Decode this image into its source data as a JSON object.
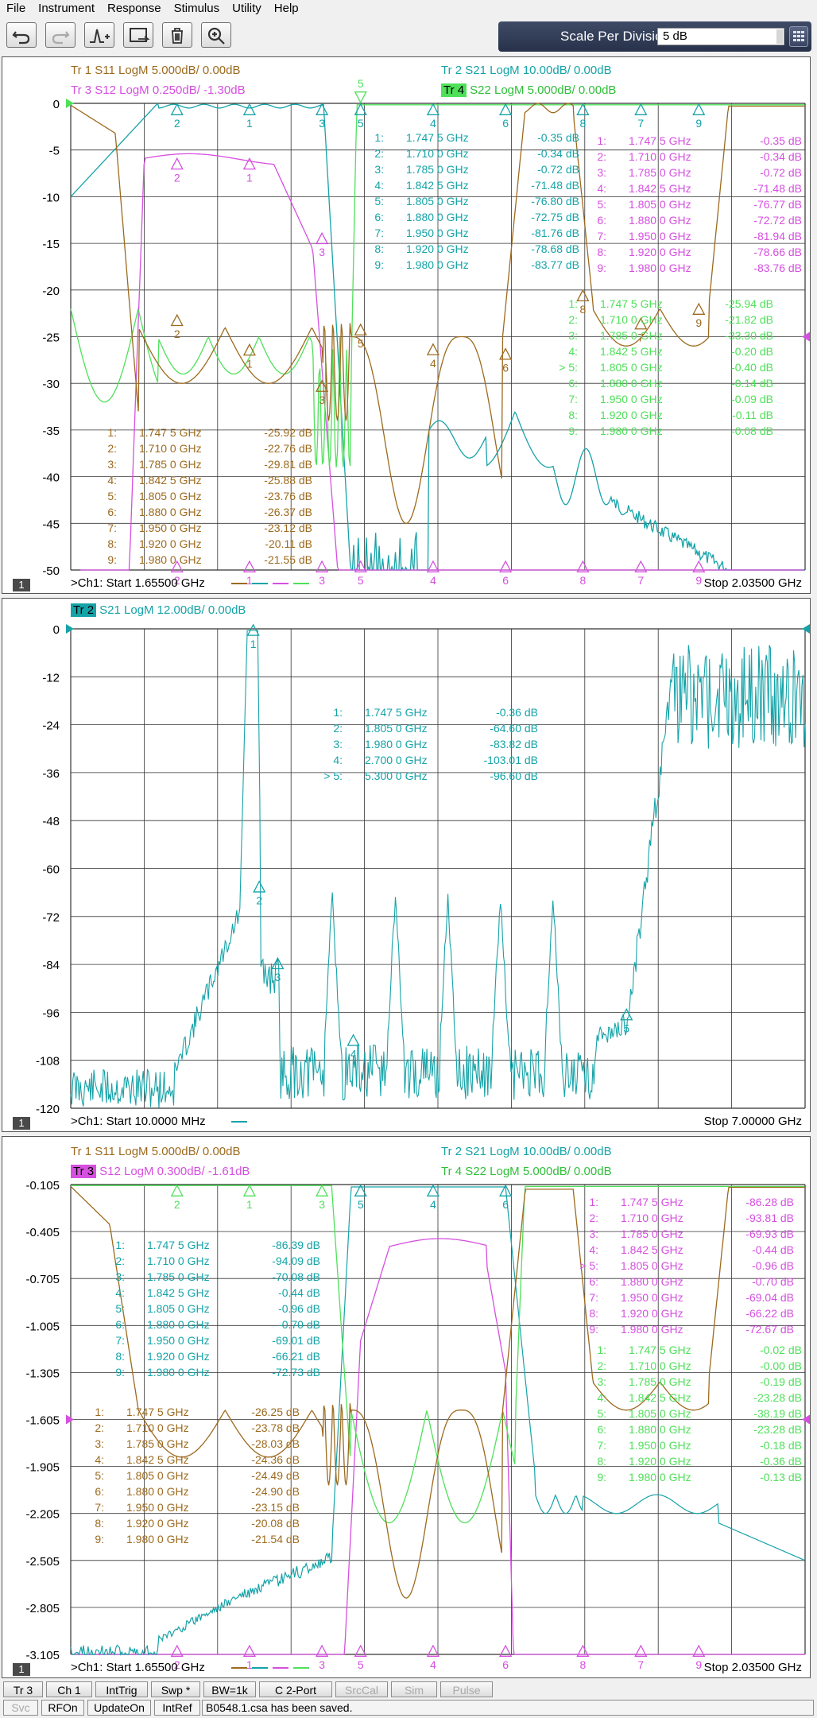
{
  "menu": [
    "File",
    "Instrument",
    "Response",
    "Stimulus",
    "Utility",
    "Help"
  ],
  "toolbar": {
    "icons": [
      "undo-icon",
      "redo-icon",
      "marker-add-icon",
      "cal-all-icon",
      "trash-icon",
      "zoom-icon"
    ],
    "scale_label": "Scale Per Division",
    "scale_value": "5 dB"
  },
  "colors": {
    "tr1": "#9c6a1e",
    "tr2": "#15a3a8",
    "tr3": "#d64fe0",
    "tr4": "#4fe05a",
    "grid": "#222222"
  },
  "windows": [
    {
      "ch_num": "1",
      "headers": [
        {
          "text": "Tr 1  S11 LogM 5.000dB/  0.00dB",
          "color": "#9c6a1e",
          "tag": ""
        },
        {
          "text": "Tr 2  S21 LogM 10.00dB/  0.00dB",
          "color": "#15a3a8",
          "tag": ""
        },
        {
          "text": "Tr 3  S12 LogM 0.250dB/  -1.30dB",
          "color": "#d64fe0",
          "tag": ""
        },
        {
          "text": "S22 LogM 5.000dB/  0.00dB",
          "color": "#2fbf38",
          "tag": "Tr 4"
        }
      ],
      "yticks": [
        "0",
        "-5",
        "-10",
        "-15",
        "-20",
        "-25",
        "-30",
        "-35",
        "-40",
        "-45",
        "-50"
      ],
      "start": ">Ch1:  Start   1.65500 GHz",
      "stop": "Stop  2.03500 GHz",
      "tables": [
        {
          "color": "#15a3a8",
          "rows": [
            [
              "1:",
              "1.747 5 GHz",
              "-0.35 dB"
            ],
            [
              "2:",
              "1.710 0 GHz",
              "-0.34 dB"
            ],
            [
              "3:",
              "1.785 0 GHz",
              "-0.72 dB"
            ],
            [
              "4:",
              "1.842 5 GHz",
              "-71.48 dB"
            ],
            [
              "5:",
              "1.805 0 GHz",
              "-76.80 dB"
            ],
            [
              "6:",
              "1.880 0 GHz",
              "-72.75 dB"
            ],
            [
              "7:",
              "1.950 0 GHz",
              "-81.76 dB"
            ],
            [
              "8:",
              "1.920 0 GHz",
              "-78.68 dB"
            ],
            [
              "9:",
              "1.980 0 GHz",
              "-83.77 dB"
            ]
          ]
        },
        {
          "color": "#d64fe0",
          "rows": [
            [
              "1:",
              "1.747 5 GHz",
              "-0.35 dB"
            ],
            [
              "2:",
              "1.710 0 GHz",
              "-0.34 dB"
            ],
            [
              "3:",
              "1.785 0 GHz",
              "-0.72 dB"
            ],
            [
              "4:",
              "1.842 5 GHz",
              "-71.48 dB"
            ],
            [
              "5:",
              "1.805 0 GHz",
              "-76.77 dB"
            ],
            [
              "6:",
              "1.880 0 GHz",
              "-72.72 dB"
            ],
            [
              "7:",
              "1.950 0 GHz",
              "-81.94 dB"
            ],
            [
              "8:",
              "1.920 0 GHz",
              "-78.66 dB"
            ],
            [
              "9:",
              "1.980 0 GHz",
              "-83.76 dB"
            ]
          ]
        },
        {
          "color": "#4fe05a",
          "rows": [
            [
              "1:",
              "1.747 5 GHz",
              "-25.94 dB"
            ],
            [
              "2:",
              "1.710 0 GHz",
              "-21.82 dB"
            ],
            [
              "3:",
              "1.785 0 GHz",
              "-33.30 dB"
            ],
            [
              "4:",
              "1.842 5 GHz",
              "-0.20 dB"
            ],
            [
              "> 5:",
              "1.805 0 GHz",
              "-0.40 dB"
            ],
            [
              "6:",
              "1.880 0 GHz",
              "-0.14 dB"
            ],
            [
              "7:",
              "1.950 0 GHz",
              "-0.09 dB"
            ],
            [
              "8:",
              "1.920 0 GHz",
              "-0.11 dB"
            ],
            [
              "9:",
              "1.980 0 GHz",
              "-0.08 dB"
            ]
          ]
        },
        {
          "color": "#9c6a1e",
          "rows": [
            [
              "1:",
              "1.747 5 GHz",
              "-25.92 dB"
            ],
            [
              "2:",
              "1.710 0 GHz",
              "-22.76 dB"
            ],
            [
              "3:",
              "1.785 0 GHz",
              "-29.81 dB"
            ],
            [
              "4:",
              "1.842 5 GHz",
              "-25.88 dB"
            ],
            [
              "5:",
              "1.805 0 GHz",
              "-23.76 dB"
            ],
            [
              "6:",
              "1.880 0 GHz",
              "-26.37 dB"
            ],
            [
              "7:",
              "1.950 0 GHz",
              "-23.12 dB"
            ],
            [
              "8:",
              "1.920 0 GHz",
              "-20.11 dB"
            ],
            [
              "9:",
              "1.980 0 GHz",
              "-21.55 dB"
            ]
          ]
        }
      ]
    },
    {
      "ch_num": "1",
      "headers": [
        {
          "text": "S21 LogM 12.00dB/  0.00dB",
          "color": "#15a3a8",
          "tag": "Tr 2"
        }
      ],
      "yticks": [
        "0",
        "-12",
        "-24",
        "-36",
        "-48",
        "-60",
        "-72",
        "-84",
        "-96",
        "-108",
        "-120"
      ],
      "start": ">Ch1:  Start   10.0000 MHz",
      "stop": "Stop  7.00000 GHz",
      "tables": [
        {
          "color": "#15a3a8",
          "rows": [
            [
              "1:",
              "1.747 5 GHz",
              "-0.36 dB"
            ],
            [
              "2:",
              "1.805 0 GHz",
              "-64.60 dB"
            ],
            [
              "3:",
              "1.980 0 GHz",
              "-83.82 dB"
            ],
            [
              "4:",
              "2.700 0 GHz",
              "-103.01 dB"
            ],
            [
              "> 5:",
              "5.300 0 GHz",
              "-96.60 dB"
            ]
          ]
        }
      ]
    },
    {
      "ch_num": "1",
      "headers": [
        {
          "text": "Tr 1  S11 LogM 5.000dB/  0.00dB",
          "color": "#9c6a1e",
          "tag": ""
        },
        {
          "text": "Tr 2  S21 LogM 10.00dB/  0.00dB",
          "color": "#15a3a8",
          "tag": ""
        },
        {
          "text": "S12 LogM 0.300dB/  -1.61dB",
          "color": "#d64fe0",
          "tag": "Tr 3"
        },
        {
          "text": "Tr 4  S22 LogM 5.000dB/  0.00dB",
          "color": "#2fbf38",
          "tag": ""
        }
      ],
      "yticks": [
        "-0.105",
        "-0.405",
        "-0.705",
        "-1.005",
        "-1.305",
        "-1.605",
        "-1.905",
        "-2.205",
        "-2.505",
        "-2.805",
        "-3.105"
      ],
      "start": ">Ch1:  Start   1.65500 GHz",
      "stop": "Stop  2.03500 GHz",
      "tables": [
        {
          "color": "#15a3a8",
          "rows": [
            [
              "1:",
              "1.747 5 GHz",
              "-86.39 dB"
            ],
            [
              "2:",
              "1.710 0 GHz",
              "-94.09 dB"
            ],
            [
              "3:",
              "1.785 0 GHz",
              "-70.08 dB"
            ],
            [
              "4:",
              "1.842 5 GHz",
              "-0.44 dB"
            ],
            [
              "5:",
              "1.805 0 GHz",
              "-0.96 dB"
            ],
            [
              "6:",
              "1.880 0 GHz",
              "-0.70 dB"
            ],
            [
              "7:",
              "1.950 0 GHz",
              "-69.01 dB"
            ],
            [
              "8:",
              "1.920 0 GHz",
              "-66.21 dB"
            ],
            [
              "9:",
              "1.980 0 GHz",
              "-72.73 dB"
            ]
          ]
        },
        {
          "color": "#d64fe0",
          "rows": [
            [
              "1:",
              "1.747 5 GHz",
              "-86.28 dB"
            ],
            [
              "2:",
              "1.710 0 GHz",
              "-93.81 dB"
            ],
            [
              "3:",
              "1.785 0 GHz",
              "-69.93 dB"
            ],
            [
              "4:",
              "1.842 5 GHz",
              "-0.44 dB"
            ],
            [
              "> 5:",
              "1.805 0 GHz",
              "-0.96 dB"
            ],
            [
              "6:",
              "1.880 0 GHz",
              "-0.70 dB"
            ],
            [
              "7:",
              "1.950 0 GHz",
              "-69.04 dB"
            ],
            [
              "8:",
              "1.920 0 GHz",
              "-66.22 dB"
            ],
            [
              "9:",
              "1.980 0 GHz",
              "-72.67 dB"
            ]
          ]
        },
        {
          "color": "#4fe05a",
          "rows": [
            [
              "1:",
              "1.747 5 GHz",
              "-0.02 dB"
            ],
            [
              "2:",
              "1.710 0 GHz",
              "-0.00 dB"
            ],
            [
              "3:",
              "1.785 0 GHz",
              "-0.19 dB"
            ],
            [
              "4:",
              "1.842 5 GHz",
              "-23.28 dB"
            ],
            [
              "5:",
              "1.805 0 GHz",
              "-38.19 dB"
            ],
            [
              "6:",
              "1.880 0 GHz",
              "-23.28 dB"
            ],
            [
              "7:",
              "1.950 0 GHz",
              "-0.18 dB"
            ],
            [
              "8:",
              "1.920 0 GHz",
              "-0.36 dB"
            ],
            [
              "9:",
              "1.980 0 GHz",
              "-0.13 dB"
            ]
          ]
        },
        {
          "color": "#9c6a1e",
          "rows": [
            [
              "1:",
              "1.747 5 GHz",
              "-26.25 dB"
            ],
            [
              "2:",
              "1.710 0 GHz",
              "-23.78 dB"
            ],
            [
              "3:",
              "1.785 0 GHz",
              "-28.03 dB"
            ],
            [
              "4:",
              "1.842 5 GHz",
              "-24.36 dB"
            ],
            [
              "5:",
              "1.805 0 GHz",
              "-24.49 dB"
            ],
            [
              "6:",
              "1.880 0 GHz",
              "-24.90 dB"
            ],
            [
              "7:",
              "1.950 0 GHz",
              "-23.15 dB"
            ],
            [
              "8:",
              "1.920 0 GHz",
              "-20.08 dB"
            ],
            [
              "9:",
              "1.980 0 GHz",
              "-21.54 dB"
            ]
          ]
        }
      ]
    }
  ],
  "status_row1": [
    "Tr 3",
    "Ch 1",
    "IntTrig",
    "Swp *",
    "BW=1k",
    "C  2-Port",
    "SrcCal",
    "Sim",
    "Pulse"
  ],
  "status_row2": [
    "Svc",
    "RFOn",
    "UpdateOn",
    "IntRef"
  ],
  "status_message": "B0548.1.csa has been saved.",
  "chart_data": [
    {
      "type": "line",
      "x_range_GHz": [
        1.655,
        2.035
      ],
      "ylim": [
        -50,
        0
      ],
      "y_unit": "dB",
      "series": [
        {
          "name": "S11",
          "markers_x_GHz": [
            1.7475,
            1.71,
            1.785,
            1.8425,
            1.805,
            1.88,
            1.95,
            1.92,
            1.98
          ],
          "markers_y_dB": [
            -25.92,
            -22.76,
            -29.81,
            -25.88,
            -23.76,
            -26.37,
            -23.12,
            -20.11,
            -21.55
          ]
        },
        {
          "name": "S21",
          "markers_x_GHz": [
            1.7475,
            1.71,
            1.785,
            1.8425,
            1.805,
            1.88,
            1.95,
            1.92,
            1.98
          ],
          "markers_y_dB": [
            -0.35,
            -0.34,
            -0.72,
            -71.48,
            -76.8,
            -72.75,
            -81.76,
            -78.68,
            -83.77
          ]
        },
        {
          "name": "S12",
          "markers_x_GHz": [
            1.7475,
            1.71,
            1.785,
            1.8425,
            1.805,
            1.88,
            1.95,
            1.92,
            1.98
          ],
          "markers_y_dB": [
            -0.35,
            -0.34,
            -0.72,
            -71.48,
            -76.77,
            -72.72,
            -81.94,
            -78.66,
            -83.76
          ]
        },
        {
          "name": "S22",
          "markers_x_GHz": [
            1.7475,
            1.71,
            1.785,
            1.8425,
            1.805,
            1.88,
            1.95,
            1.92,
            1.98
          ],
          "markers_y_dB": [
            -25.94,
            -21.82,
            -33.3,
            -0.2,
            -0.4,
            -0.14,
            -0.09,
            -0.11,
            -0.08
          ]
        }
      ]
    },
    {
      "type": "line",
      "x_range_GHz": [
        0.01,
        7.0
      ],
      "ylim": [
        -120,
        0
      ],
      "y_unit": "dB",
      "series": [
        {
          "name": "S21",
          "markers_x_GHz": [
            1.7475,
            1.805,
            1.98,
            2.7,
            5.3
          ],
          "markers_y_dB": [
            -0.36,
            -64.6,
            -83.82,
            -103.01,
            -96.6
          ]
        }
      ]
    },
    {
      "type": "line",
      "x_range_GHz": [
        1.655,
        2.035
      ],
      "ylim": [
        -3.105,
        -0.105
      ],
      "y_unit": "dB",
      "series": [
        {
          "name": "S11",
          "markers_x_GHz": [
            1.7475,
            1.71,
            1.785,
            1.8425,
            1.805,
            1.88,
            1.95,
            1.92,
            1.98
          ],
          "markers_y_dB": [
            -26.25,
            -23.78,
            -28.03,
            -24.36,
            -24.49,
            -24.9,
            -23.15,
            -20.08,
            -21.54
          ]
        },
        {
          "name": "S21",
          "markers_x_GHz": [
            1.7475,
            1.71,
            1.785,
            1.8425,
            1.805,
            1.88,
            1.95,
            1.92,
            1.98
          ],
          "markers_y_dB": [
            -86.39,
            -94.09,
            -70.08,
            -0.44,
            -0.96,
            -0.7,
            -69.01,
            -66.21,
            -72.73
          ]
        },
        {
          "name": "S12",
          "markers_x_GHz": [
            1.7475,
            1.71,
            1.785,
            1.8425,
            1.805,
            1.88,
            1.95,
            1.92,
            1.98
          ],
          "markers_y_dB": [
            -86.28,
            -93.81,
            -69.93,
            -0.44,
            -0.96,
            -0.7,
            -69.04,
            -66.22,
            -72.67
          ]
        },
        {
          "name": "S22",
          "markers_x_GHz": [
            1.7475,
            1.71,
            1.785,
            1.8425,
            1.805,
            1.88,
            1.95,
            1.92,
            1.98
          ],
          "markers_y_dB": [
            -0.02,
            -0.0,
            -0.19,
            -23.28,
            -38.19,
            -23.28,
            -0.18,
            -0.36,
            -0.13
          ]
        }
      ]
    }
  ]
}
